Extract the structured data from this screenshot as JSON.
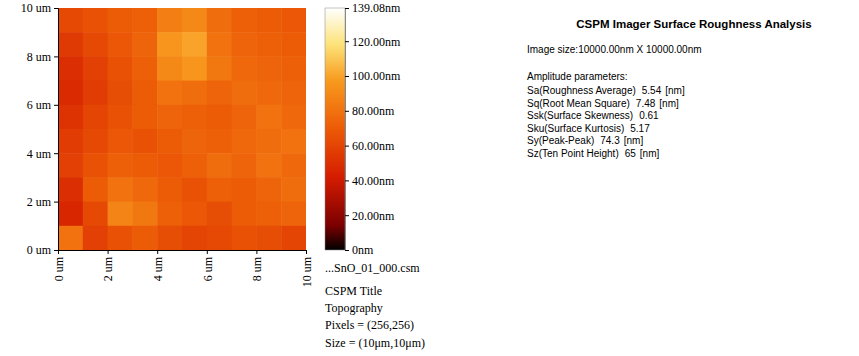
{
  "chart_data": {
    "type": "heatmap",
    "x_bins": [
      0,
      1,
      2,
      3,
      4,
      5,
      6,
      7,
      8,
      9,
      10
    ],
    "y_bins": [
      10,
      9,
      8,
      7,
      6,
      5,
      4,
      3,
      2,
      1,
      0
    ],
    "cells": [
      [
        62,
        66,
        70,
        72,
        85,
        90,
        78,
        72,
        70,
        68
      ],
      [
        55,
        62,
        68,
        74,
        95,
        100,
        80,
        74,
        72,
        70
      ],
      [
        50,
        58,
        66,
        72,
        90,
        95,
        82,
        76,
        74,
        72
      ],
      [
        48,
        56,
        64,
        70,
        80,
        78,
        74,
        78,
        76,
        74
      ],
      [
        52,
        60,
        66,
        70,
        74,
        72,
        70,
        74,
        80,
        76
      ],
      [
        56,
        62,
        68,
        66,
        70,
        74,
        72,
        76,
        78,
        80
      ],
      [
        58,
        66,
        72,
        70,
        68,
        72,
        78,
        74,
        80,
        76
      ],
      [
        50,
        70,
        80,
        76,
        70,
        66,
        72,
        70,
        74,
        78
      ],
      [
        46,
        62,
        88,
        82,
        72,
        68,
        64,
        70,
        72,
        74
      ],
      [
        80,
        58,
        66,
        70,
        64,
        60,
        62,
        66,
        64,
        60
      ]
    ],
    "xlim": [
      0,
      10
    ],
    "ylim": [
      0,
      10
    ],
    "xticks": [
      {
        "value": 0,
        "label": "0 um"
      },
      {
        "value": 2,
        "label": "2 um"
      },
      {
        "value": 4,
        "label": "4 um"
      },
      {
        "value": 6,
        "label": "6 um"
      },
      {
        "value": 8,
        "label": "8 um"
      },
      {
        "value": 10,
        "label": "10 um"
      }
    ],
    "yticks": [
      {
        "value": 0,
        "label": "0 um"
      },
      {
        "value": 2,
        "label": "2 um"
      },
      {
        "value": 4,
        "label": "4 um"
      },
      {
        "value": 6,
        "label": "6 um"
      },
      {
        "value": 8,
        "label": "8 um"
      },
      {
        "value": 10,
        "label": "10 um"
      }
    ],
    "colorbar_range": [
      0,
      139.08
    ],
    "colorbar_ticks": [
      {
        "value": 0,
        "label": "0nm"
      },
      {
        "value": 20,
        "label": "20.00nm"
      },
      {
        "value": 40,
        "label": "40.00nm"
      },
      {
        "value": 60,
        "label": "60.00nm"
      },
      {
        "value": 80,
        "label": "80.00nm"
      },
      {
        "value": 100,
        "label": "100.00nm"
      },
      {
        "value": 120,
        "label": "120.00nm"
      },
      {
        "value": 139.08,
        "label": "139.08nm"
      }
    ]
  },
  "caption": [
    "...SnO_01_000.csm",
    "CSPM Title",
    "Topography",
    "Pixels = (256,256)",
    "Size = (10μm,10μm)"
  ],
  "analysis": {
    "title": "CSPM Imager Surface Roughness Analysis",
    "image_size": "Image size:10000.00nm X 10000.00nm",
    "section": "Amplitude parameters:",
    "parameters": [
      {
        "label": "Sa(Roughness Average)",
        "value": 5.54,
        "unit": "[nm]"
      },
      {
        "label": "Sq(Root Mean Square)",
        "value": 7.48,
        "unit": "[nm]"
      },
      {
        "label": "Ssk(Surface Skewness)",
        "value": 0.61
      },
      {
        "label": "Sku(Surface Kurtosis)",
        "value": 5.17
      },
      {
        "label": "Sy(Peak-Peak)",
        "value": 74.3,
        "unit": "[nm]"
      },
      {
        "label": "Sz(Ten Point Height)",
        "value": 65,
        "unit": "[nm]"
      }
    ]
  }
}
